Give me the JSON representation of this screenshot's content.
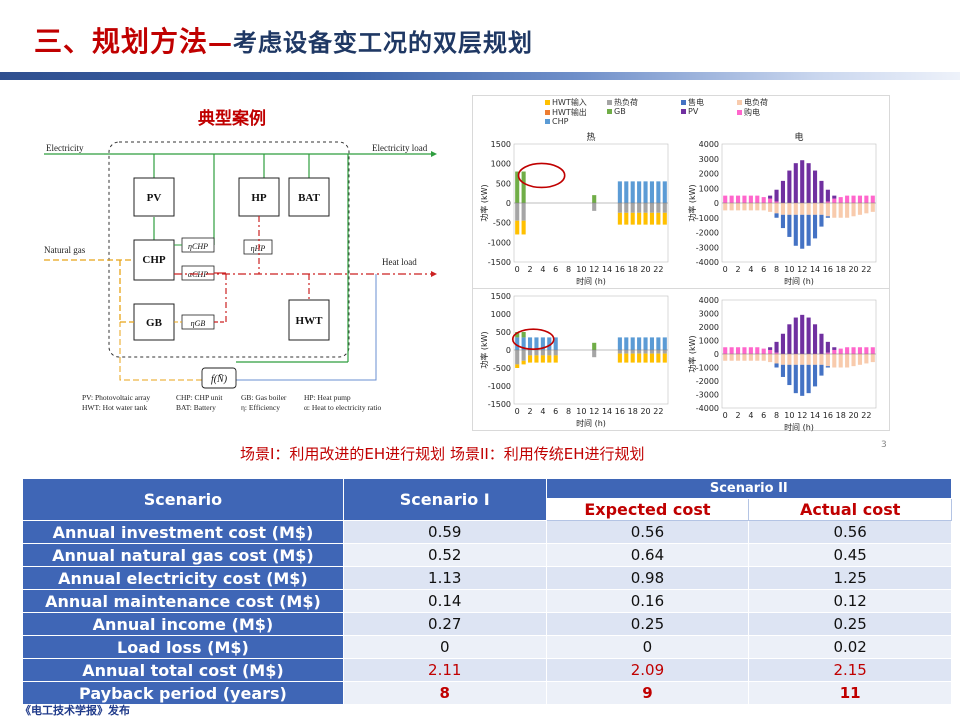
{
  "header": {
    "title_main": "三、规划方法",
    "title_dash": "—",
    "title_sub": "考虑设备变工况的双层规划"
  },
  "schematic": {
    "title": "典型案例",
    "electricity": "Electricity",
    "electricity_load": "Electricity load",
    "natural_gas": "Natural gas",
    "heat_load": "Heat load",
    "pv": "PV",
    "hp": "HP",
    "bat": "BAT",
    "chp": "CHP",
    "gb": "GB",
    "hwt": "HWT",
    "eta_chp": "ηCHP",
    "eta_hp": "ηHP",
    "alpha_chp": "αCHP",
    "eta_gb": "ηGB",
    "f_n": "f(N̄)",
    "notes": [
      "PV: Photovoltaic array",
      "CHP: CHP unit",
      "GB: Gas boiler",
      "HP: Heat pump",
      "HWT: Hot water tank",
      "BAT: Battery",
      "η: Efficiency",
      "α: Heat to electricity ratio"
    ]
  },
  "legend": {
    "items": [
      {
        "label": "HWT输入",
        "color": "#ffc000"
      },
      {
        "label": "热负荷",
        "color": "#a5a5a5"
      },
      {
        "label": "售电",
        "color": "#4472c4"
      },
      {
        "label": "电负荷",
        "color": "#f8cbad"
      },
      {
        "label": "HWT输出",
        "color": "#ed7d31"
      },
      {
        "label": "GB",
        "color": "#70ad47"
      },
      {
        "label": "PV",
        "color": "#7030a0"
      },
      {
        "label": "购电",
        "color": "#ff66cc"
      },
      {
        "label": "CHP",
        "color": "#5b9bd5"
      }
    ]
  },
  "chart_data": [
    {
      "type": "bar",
      "title": "热",
      "xlabel": "时间 (h)",
      "ylabel": "功率 (kW)",
      "ylim": [
        -1500,
        1500
      ],
      "yticks": [
        -1500,
        -1000,
        -500,
        0,
        500,
        1000,
        1500
      ],
      "xticks": [
        0,
        2,
        4,
        6,
        8,
        10,
        12,
        14,
        16,
        18,
        20,
        22
      ],
      "x": [
        0,
        1,
        2,
        3,
        4,
        5,
        6,
        7,
        8,
        9,
        10,
        11,
        12,
        13,
        14,
        15,
        16,
        17,
        18,
        19,
        20,
        21,
        22,
        23
      ],
      "series": [
        {
          "name": "GB",
          "color": "#70ad47",
          "values": [
            800,
            800,
            0,
            0,
            0,
            0,
            0,
            0,
            0,
            0,
            0,
            0,
            200,
            0,
            0,
            0,
            0,
            0,
            0,
            0,
            0,
            0,
            0,
            0
          ]
        },
        {
          "name": "CHP",
          "color": "#5b9bd5",
          "values": [
            0,
            0,
            0,
            0,
            0,
            0,
            0,
            0,
            0,
            0,
            0,
            0,
            0,
            0,
            0,
            0,
            550,
            550,
            550,
            550,
            550,
            550,
            550,
            550
          ]
        },
        {
          "name": "热负荷",
          "color": "#a5a5a5",
          "values": [
            -450,
            -450,
            0,
            0,
            0,
            0,
            0,
            0,
            0,
            0,
            0,
            0,
            -200,
            0,
            0,
            0,
            -250,
            -250,
            -250,
            -250,
            -250,
            -250,
            -250,
            -250
          ]
        },
        {
          "name": "HWT输入",
          "color": "#ffc000",
          "values": [
            -350,
            -350,
            0,
            0,
            0,
            0,
            0,
            0,
            0,
            0,
            0,
            0,
            0,
            0,
            0,
            0,
            -300,
            -300,
            -300,
            -300,
            -300,
            -300,
            -300,
            -300
          ]
        }
      ]
    },
    {
      "type": "bar",
      "title": "电",
      "xlabel": "时间 (h)",
      "ylabel": "功率 (kW)",
      "ylim": [
        -4000,
        4000
      ],
      "yticks": [
        -4000,
        -3000,
        -2000,
        -1000,
        0,
        1000,
        2000,
        3000,
        4000
      ],
      "xticks": [
        0,
        2,
        4,
        6,
        8,
        10,
        12,
        14,
        16,
        18,
        20,
        22
      ],
      "x": [
        0,
        1,
        2,
        3,
        4,
        5,
        6,
        7,
        8,
        9,
        10,
        11,
        12,
        13,
        14,
        15,
        16,
        17,
        18,
        19,
        20,
        21,
        22,
        23
      ],
      "series": [
        {
          "name": "购电",
          "color": "#ff66cc",
          "values": [
            500,
            500,
            500,
            500,
            500,
            500,
            400,
            300,
            100,
            0,
            0,
            0,
            0,
            0,
            0,
            0,
            100,
            300,
            400,
            500,
            500,
            500,
            500,
            500
          ]
        },
        {
          "name": "PV",
          "color": "#7030a0",
          "values": [
            0,
            0,
            0,
            0,
            0,
            0,
            0,
            200,
            800,
            1500,
            2200,
            2700,
            2900,
            2700,
            2200,
            1500,
            800,
            200,
            0,
            0,
            0,
            0,
            0,
            0
          ]
        },
        {
          "name": "电负荷",
          "color": "#f8cbad",
          "values": [
            -500,
            -500,
            -500,
            -500,
            -500,
            -500,
            -500,
            -600,
            -700,
            -800,
            -800,
            -800,
            -800,
            -800,
            -800,
            -800,
            -900,
            -1000,
            -1000,
            -1000,
            -900,
            -800,
            -700,
            -600
          ]
        },
        {
          "name": "售电",
          "color": "#4472c4",
          "values": [
            0,
            0,
            0,
            0,
            0,
            0,
            0,
            0,
            -300,
            -900,
            -1500,
            -2100,
            -2300,
            -2100,
            -1600,
            -800,
            -100,
            0,
            0,
            0,
            0,
            0,
            0,
            0
          ]
        }
      ]
    },
    {
      "type": "bar",
      "title": "",
      "xlabel": "时间 (h)",
      "ylabel": "功率 (kW)",
      "ylim": [
        -1500,
        1500
      ],
      "yticks": [
        -1500,
        -1000,
        -500,
        0,
        500,
        1000,
        1500
      ],
      "xticks": [
        0,
        2,
        4,
        6,
        8,
        10,
        12,
        14,
        16,
        18,
        20,
        22
      ],
      "x": [
        0,
        1,
        2,
        3,
        4,
        5,
        6,
        7,
        8,
        9,
        10,
        11,
        12,
        13,
        14,
        15,
        16,
        17,
        18,
        19,
        20,
        21,
        22,
        23
      ],
      "series": [
        {
          "name": "CHP",
          "color": "#5b9bd5",
          "values": [
            350,
            350,
            350,
            350,
            350,
            350,
            350,
            0,
            0,
            0,
            0,
            0,
            0,
            0,
            0,
            0,
            350,
            350,
            350,
            350,
            350,
            350,
            350,
            350
          ]
        },
        {
          "name": "GB",
          "color": "#70ad47",
          "values": [
            150,
            150,
            0,
            0,
            0,
            0,
            0,
            0,
            0,
            0,
            0,
            0,
            200,
            0,
            0,
            0,
            0,
            0,
            0,
            0,
            0,
            0,
            0,
            0
          ]
        },
        {
          "name": "热负荷",
          "color": "#a5a5a5",
          "values": [
            -400,
            -300,
            -150,
            -150,
            -150,
            -150,
            -150,
            0,
            0,
            0,
            0,
            0,
            -200,
            0,
            0,
            0,
            -100,
            -100,
            -100,
            -100,
            -100,
            -100,
            -100,
            -100
          ]
        },
        {
          "name": "HWT输入",
          "color": "#ffc000",
          "values": [
            -100,
            -100,
            -200,
            -200,
            -200,
            -200,
            -200,
            0,
            0,
            0,
            0,
            0,
            0,
            0,
            0,
            0,
            -250,
            -250,
            -250,
            -250,
            -250,
            -250,
            -250,
            -250
          ]
        }
      ]
    },
    {
      "type": "bar",
      "title": "",
      "xlabel": "时间 (h)",
      "ylabel": "功率 (kW)",
      "ylim": [
        -4000,
        4000
      ],
      "yticks": [
        -4000,
        -3000,
        -2000,
        -1000,
        0,
        1000,
        2000,
        3000,
        4000
      ],
      "xticks": [
        0,
        2,
        4,
        6,
        8,
        10,
        12,
        14,
        16,
        18,
        20,
        22
      ],
      "x": [
        0,
        1,
        2,
        3,
        4,
        5,
        6,
        7,
        8,
        9,
        10,
        11,
        12,
        13,
        14,
        15,
        16,
        17,
        18,
        19,
        20,
        21,
        22,
        23
      ],
      "series": [
        {
          "name": "购电",
          "color": "#ff66cc",
          "values": [
            500,
            500,
            500,
            500,
            500,
            500,
            400,
            300,
            100,
            0,
            0,
            0,
            0,
            0,
            0,
            0,
            100,
            300,
            400,
            500,
            500,
            500,
            500,
            500
          ]
        },
        {
          "name": "PV",
          "color": "#7030a0",
          "values": [
            0,
            0,
            0,
            0,
            0,
            0,
            0,
            200,
            800,
            1500,
            2200,
            2700,
            2900,
            2700,
            2200,
            1500,
            800,
            200,
            0,
            0,
            0,
            0,
            0,
            0
          ]
        },
        {
          "name": "电负荷",
          "color": "#f8cbad",
          "values": [
            -500,
            -500,
            -500,
            -500,
            -500,
            -500,
            -500,
            -600,
            -700,
            -800,
            -800,
            -800,
            -800,
            -800,
            -800,
            -800,
            -900,
            -1000,
            -1000,
            -1000,
            -900,
            -800,
            -700,
            -600
          ]
        },
        {
          "name": "售电",
          "color": "#4472c4",
          "values": [
            0,
            0,
            0,
            0,
            0,
            0,
            0,
            0,
            -300,
            -900,
            -1500,
            -2100,
            -2300,
            -2100,
            -1600,
            -800,
            -100,
            0,
            0,
            0,
            0,
            0,
            0,
            0
          ]
        }
      ]
    }
  ],
  "caption": {
    "part1": "场景I：利用改进的EH进行规划 ",
    "part2": "场景II：利用传统EH进行规划"
  },
  "page_number": "3",
  "table": {
    "h_scenario": "Scenario",
    "h_s1": "Scenario I",
    "h_s2": "Scenario II",
    "h_expected": "Expected cost",
    "h_actual": "Actual cost",
    "rows": [
      {
        "label": "Annual investment cost (M$)",
        "s1": "0.59",
        "exp": "0.56",
        "act": "0.56"
      },
      {
        "label": "Annual natural gas cost (M$)",
        "s1": "0.52",
        "exp": "0.64",
        "act": "0.45"
      },
      {
        "label": "Annual electricity cost (M$)",
        "s1": "1.13",
        "exp": "0.98",
        "act": "1.25"
      },
      {
        "label": "Annual maintenance cost (M$)",
        "s1": "0.14",
        "exp": "0.16",
        "act": "0.12"
      },
      {
        "label": "Annual income (M$)",
        "s1": "0.27",
        "exp": "0.25",
        "act": "0.25"
      },
      {
        "label": "Load loss (M$)",
        "s1": "0",
        "exp": "0",
        "act": "0.02"
      },
      {
        "label": "Annual total cost (M$)",
        "s1": "2.11",
        "exp": "2.09",
        "act": "2.15"
      },
      {
        "label": "Payback period (years)",
        "s1": "8",
        "exp": "9",
        "act": "11"
      }
    ]
  },
  "footer": "《电工技术学报》发布"
}
